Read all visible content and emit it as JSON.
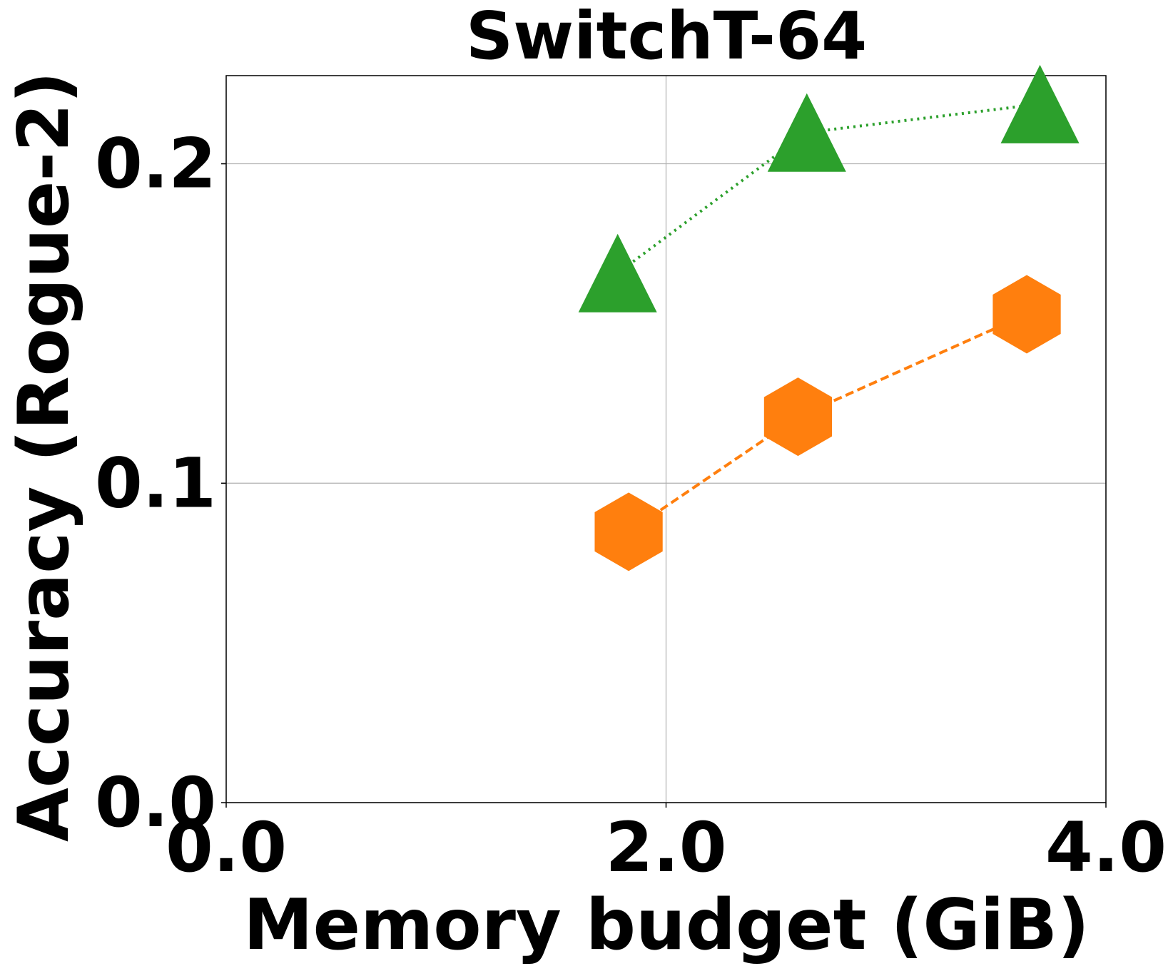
{
  "chart_data": {
    "type": "line",
    "title": "SwitchT-64",
    "x_label": "Memory budget (GiB)",
    "y_label": "Accuracy (Rogue-2)",
    "xlim": [
      0,
      4
    ],
    "xticks": [
      {
        "value": 0,
        "label": "0.0"
      },
      {
        "value": 2,
        "label": "2.0"
      },
      {
        "value": 4,
        "label": "4.0"
      }
    ],
    "ylim": [
      0,
      0.2276
    ],
    "yticks": [
      {
        "value": 0,
        "label": "0.0"
      },
      0.1,
      0.2
    ],
    "grid": true,
    "series": [
      {
        "color": "#2ca02c",
        "marker": "triangle",
        "linestyle": "dotted",
        "x": [
          1.78,
          2.64,
          3.7
        ],
        "values": [
          0.1658,
          0.2098,
          0.2187
        ]
      },
      {
        "color": "#ff7f0e",
        "marker": "hexagon",
        "linestyle": "dashed",
        "x": [
          1.83,
          2.6,
          3.64
        ],
        "values": [
          0.0848,
          0.1208,
          0.1529
        ]
      }
    ]
  }
}
